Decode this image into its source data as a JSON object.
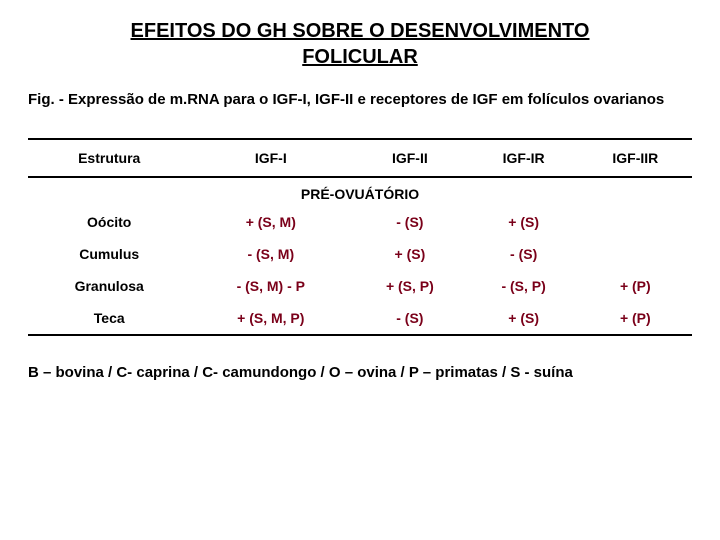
{
  "title_line1": "EFEITOS DO GH SOBRE O DESENVOLVIMENTO",
  "title_line2": "FOLICULAR",
  "caption": "Fig. - Expressão de m.RNA para o IGF-I, IGF-II e receptores de IGF em folículos ovarianos",
  "columns": [
    "Estrutura",
    "IGF-I",
    "IGF-II",
    "IGF-IR",
    "IGF-IIR"
  ],
  "section_header": "PRÉ-OVUÁTÓRIO",
  "rows": [
    {
      "struct": "Oócito",
      "c1": "+ (S, M)",
      "c2": "- (S)",
      "c3": "+ (S)",
      "c4": ""
    },
    {
      "struct": "Cumulus",
      "c1": "- (S, M)",
      "c2": "+ (S)",
      "c3": "- (S)",
      "c4": ""
    },
    {
      "struct": "Granulosa",
      "c1": "- (S, M) - P",
      "c2": "+ (S, P)",
      "c3": "- (S, P)",
      "c4": "+ (P)"
    },
    {
      "struct": "Teca",
      "c1": "+ (S, M, P)",
      "c2": "- (S)",
      "c3": "+ (S)",
      "c4": "+ (P)"
    }
  ],
  "legend": "B – bovina / C- caprina / C- camundongo / O – ovina / P – primatas / S - suína",
  "colors": {
    "value_text": "#7a0019",
    "black": "#000000",
    "bg": "#ffffff"
  }
}
